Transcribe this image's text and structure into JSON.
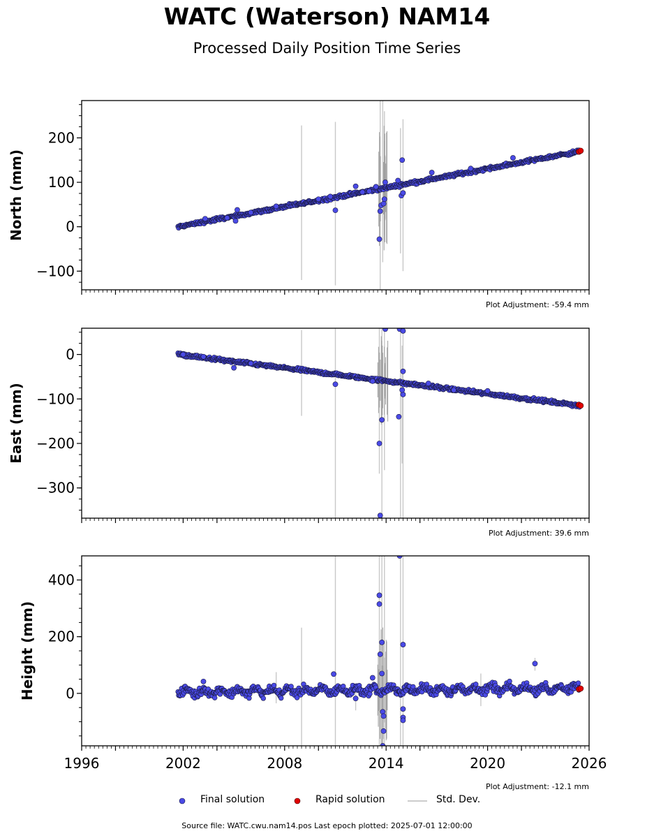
{
  "title": "WATC (Waterson) NAM14",
  "subtitle": "Processed Daily Position Time Series",
  "source": "Source file: WATC.cwu.nam14.pos  Last epoch plotted: 2025-07-01 12:00:00",
  "legend": [
    {
      "label": "Final solution",
      "color": "#4a4ae6"
    },
    {
      "label": "Rapid solution",
      "color": "#e00000"
    },
    {
      "label": "Std. Dev.",
      "color": "#cccccc"
    }
  ],
  "colors": {
    "final": "#4a4ae6",
    "rapid": "#e00000",
    "edge": "#1a1a40",
    "stddev": "#c8c8c8"
  },
  "chart_data": [
    {
      "type": "scatter",
      "ylabel": "North (mm)",
      "adjustment": "Plot Adjustment: -59.4 mm",
      "xlim": [
        1996,
        2026
      ],
      "ylim": [
        -142,
        284
      ],
      "yticks": [
        -100,
        0,
        100,
        200
      ],
      "ytick_labels": [
        "−100",
        "0",
        "100",
        "200"
      ],
      "trend": {
        "x": [
          2001.7,
          2025.5
        ],
        "y": [
          0,
          170
        ]
      },
      "final_points": [
        [
          2003.3,
          18
        ],
        [
          2004.6,
          20
        ],
        [
          2005.1,
          13
        ],
        [
          2005.2,
          38
        ],
        [
          2006.0,
          32
        ],
        [
          2007.5,
          46
        ],
        [
          2010.0,
          62
        ],
        [
          2010.7,
          68
        ],
        [
          2011.0,
          37
        ],
        [
          2012.2,
          91
        ],
        [
          2012.6,
          78
        ],
        [
          2013.0,
          80
        ],
        [
          2013.4,
          90
        ],
        [
          2013.6,
          -28
        ],
        [
          2013.7,
          48
        ],
        [
          2013.65,
          35
        ],
        [
          2013.85,
          52
        ],
        [
          2013.9,
          62
        ],
        [
          2013.95,
          100
        ],
        [
          2014.7,
          104
        ],
        [
          2014.9,
          70
        ],
        [
          2015.0,
          76
        ],
        [
          2014.95,
          150
        ],
        [
          2016.7,
          122
        ],
        [
          2019.0,
          131
        ],
        [
          2021.5,
          155
        ]
      ],
      "rapid_points": [
        [
          2025.4,
          169
        ],
        [
          2025.5,
          171
        ]
      ],
      "stddev": [
        [
          2009.0,
          -120,
          228
        ],
        [
          2011.0,
          -132,
          236
        ],
        [
          2013.65,
          -142,
          284
        ],
        [
          2013.8,
          -80,
          284
        ],
        [
          2013.9,
          -30,
          260
        ],
        [
          2014.85,
          -60,
          222
        ],
        [
          2015.0,
          -100,
          242
        ]
      ]
    },
    {
      "type": "scatter",
      "ylabel": "East (mm)",
      "adjustment": "Plot Adjustment: 39.6 mm",
      "xlim": [
        1996,
        2026
      ],
      "ylim": [
        -368,
        59
      ],
      "yticks": [
        -300,
        -200,
        -100,
        0
      ],
      "ytick_labels": [
        "−300",
        "−200",
        "−100",
        "0"
      ],
      "trend": {
        "x": [
          2001.7,
          2025.5
        ],
        "y": [
          0,
          -115
        ]
      },
      "final_points": [
        [
          2002.0,
          0
        ],
        [
          2003.2,
          -5
        ],
        [
          2005.0,
          -30
        ],
        [
          2006.0,
          -20
        ],
        [
          2011.0,
          -67
        ],
        [
          2013.2,
          -60
        ],
        [
          2013.6,
          -200
        ],
        [
          2013.65,
          -362
        ],
        [
          2013.75,
          -147
        ],
        [
          2013.95,
          57
        ],
        [
          2014.75,
          -140
        ],
        [
          2014.8,
          57
        ],
        [
          2015.0,
          -90
        ],
        [
          2014.95,
          -80
        ],
        [
          2015.0,
          -38
        ],
        [
          2015.0,
          53
        ],
        [
          2016.5,
          -65
        ],
        [
          2018.0,
          -80
        ],
        [
          2020.0,
          -82
        ]
      ],
      "rapid_points": [
        [
          2025.4,
          -113
        ],
        [
          2025.5,
          -115
        ]
      ],
      "stddev": [
        [
          2009.0,
          -138,
          55
        ],
        [
          2011.0,
          -368,
          59
        ],
        [
          2013.6,
          -268,
          59
        ],
        [
          2013.75,
          -368,
          59
        ],
        [
          2013.9,
          -260,
          59
        ],
        [
          2014.85,
          -368,
          59
        ],
        [
          2014.95,
          -245,
          20
        ],
        [
          2015.0,
          -368,
          59
        ]
      ]
    },
    {
      "type": "scatter",
      "ylabel": "Height (mm)",
      "adjustment": "Plot Adjustment: -12.1 mm",
      "xlabel": "",
      "xlim": [
        1996,
        2026
      ],
      "ylim": [
        -185,
        485
      ],
      "xticks": [
        1996,
        2002,
        2008,
        2014,
        2020,
        2026
      ],
      "yticks": [
        0,
        200,
        400
      ],
      "ytick_labels": [
        "0",
        "200",
        "400"
      ],
      "trend": {
        "x": [
          2001.7,
          2025.5
        ],
        "y": [
          5,
          18
        ]
      },
      "final_points": [
        [
          2003.2,
          42
        ],
        [
          2010.9,
          68
        ],
        [
          2012.2,
          -18
        ],
        [
          2013.2,
          55
        ],
        [
          2013.6,
          346
        ],
        [
          2013.6,
          315
        ],
        [
          2013.65,
          138
        ],
        [
          2013.75,
          180
        ],
        [
          2013.75,
          70
        ],
        [
          2013.8,
          -65
        ],
        [
          2013.85,
          -80
        ],
        [
          2013.85,
          -133
        ],
        [
          2013.8,
          -185
        ],
        [
          2014.8,
          485
        ],
        [
          2015.0,
          172
        ],
        [
          2015.0,
          -55
        ],
        [
          2015.0,
          -85
        ],
        [
          2015.0,
          -95
        ],
        [
          2022.8,
          105
        ]
      ],
      "rapid_points": [
        [
          2025.4,
          15
        ],
        [
          2025.5,
          17
        ]
      ],
      "stddev": [
        [
          2007.5,
          -35,
          75
        ],
        [
          2009.0,
          -185,
          232
        ],
        [
          2011.0,
          -185,
          485
        ],
        [
          2012.2,
          -60,
          30
        ],
        [
          2013.6,
          -185,
          485
        ],
        [
          2013.75,
          -185,
          485
        ],
        [
          2013.9,
          -185,
          485
        ],
        [
          2014.85,
          -185,
          485
        ],
        [
          2015.0,
          -185,
          485
        ],
        [
          2019.6,
          -45,
          70
        ],
        [
          2022.8,
          80,
          125
        ]
      ]
    }
  ]
}
